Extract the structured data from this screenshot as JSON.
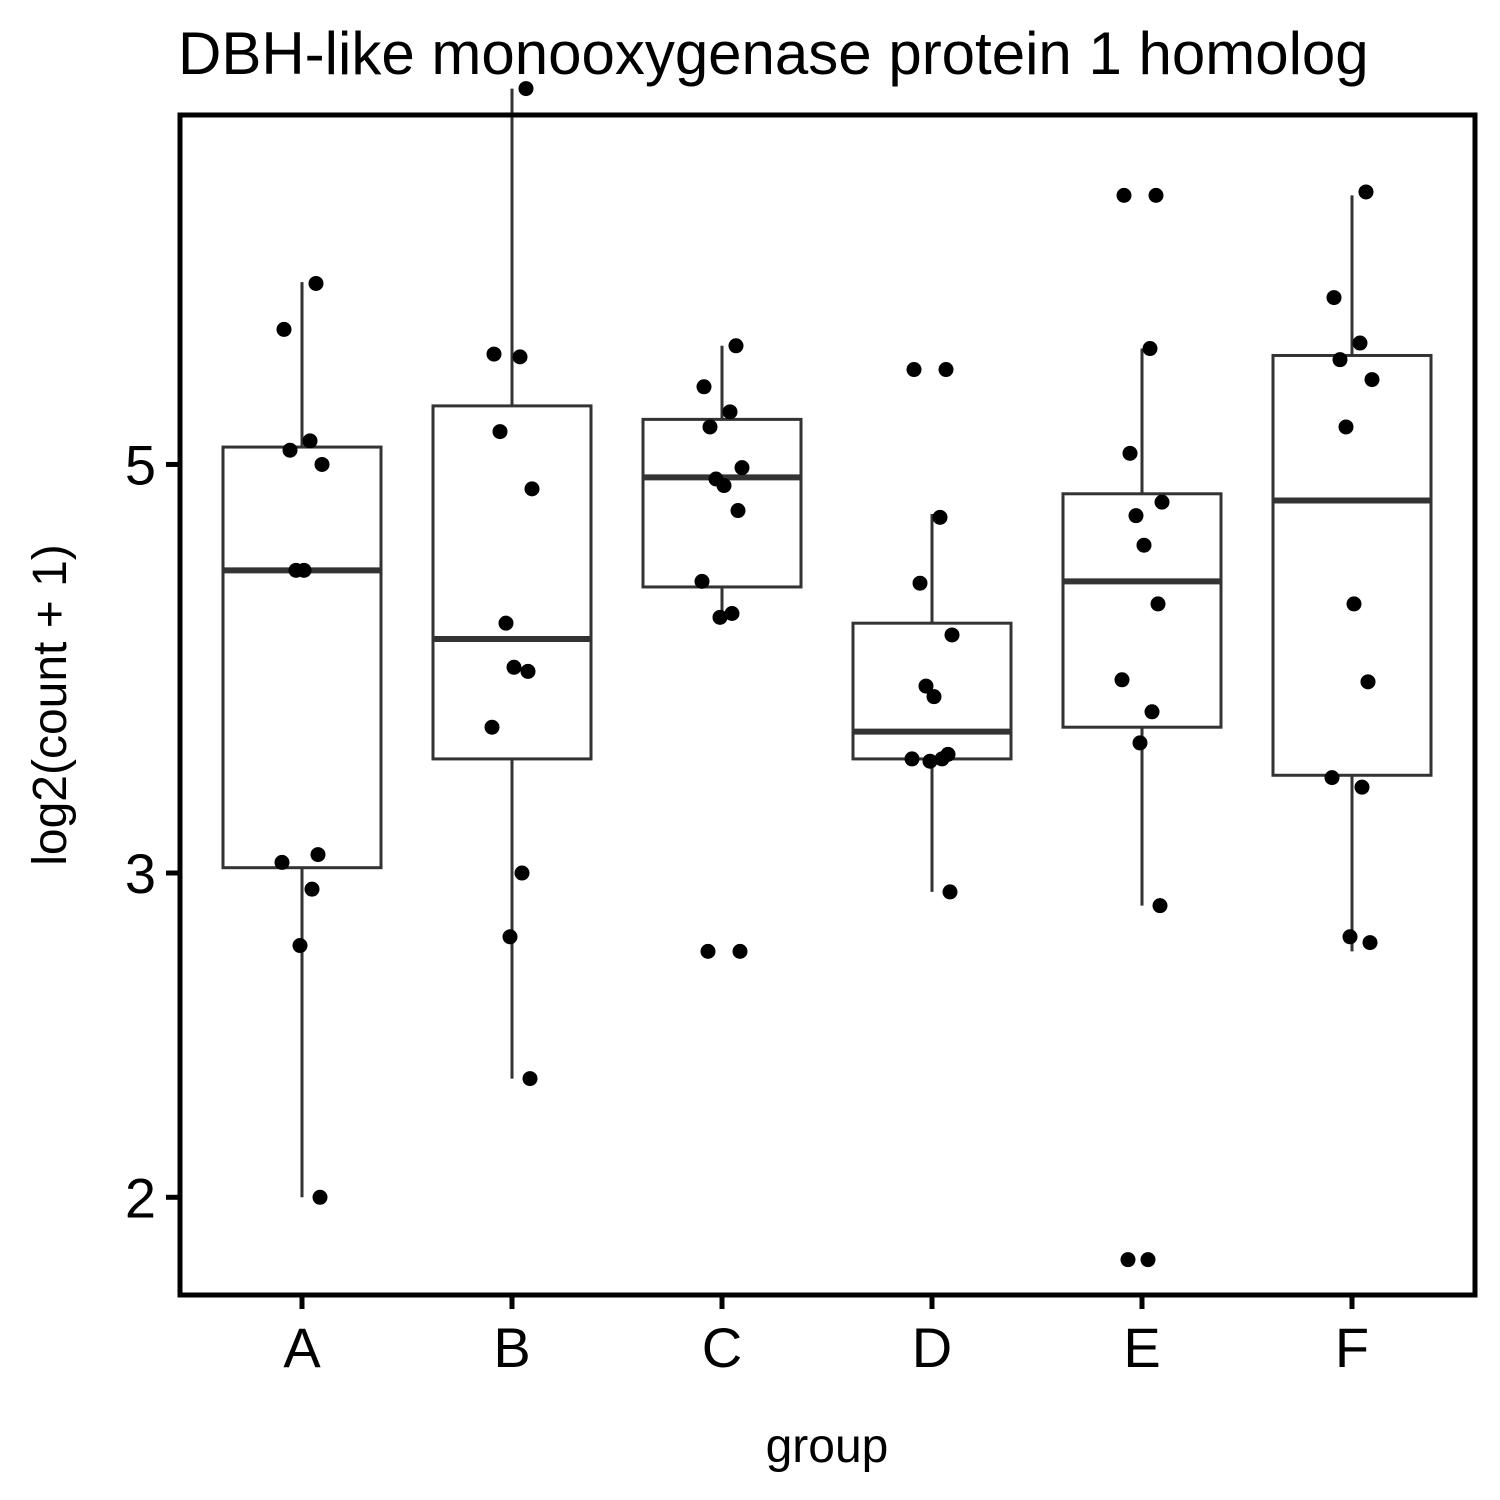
{
  "chart_data": {
    "type": "box",
    "title": "DBH-like monooxygenase protein 1 homolog",
    "xlabel": "group",
    "ylabel": "log2(count + 1)",
    "y_scale": "log2",
    "ylim": [
      1.77,
      7.74
    ],
    "yticks": [
      2,
      3,
      5
    ],
    "categories": [
      "A",
      "B",
      "C",
      "D",
      "E",
      "F"
    ],
    "boxes": [
      {
        "group": "A",
        "whisker_low": 2.0,
        "q1": 3.02,
        "median": 4.38,
        "q3": 5.11,
        "whisker_high": 6.28
      },
      {
        "group": "B",
        "whisker_low": 2.32,
        "q1": 3.46,
        "median": 4.02,
        "q3": 5.38,
        "whisker_high": 8.0
      },
      {
        "group": "C",
        "whisker_low": 4.13,
        "q1": 4.29,
        "median": 4.92,
        "q3": 5.29,
        "whisker_high": 5.8
      },
      {
        "group": "D",
        "whisker_low": 2.93,
        "q1": 3.46,
        "median": 3.58,
        "q3": 4.1,
        "whisker_high": 4.7
      },
      {
        "group": "E",
        "whisker_low": 2.88,
        "q1": 3.6,
        "median": 4.32,
        "q3": 4.82,
        "whisker_high": 5.78
      },
      {
        "group": "F",
        "whisker_low": 2.72,
        "q1": 3.39,
        "median": 4.78,
        "q3": 5.73,
        "whisker_high": 7.0
      }
    ],
    "points": [
      {
        "group": "A",
        "values": [
          6.27,
          5.92,
          5.15,
          5.09,
          5.0,
          4.38,
          4.38,
          3.07,
          3.04,
          2.94,
          2.74,
          2.0
        ]
      },
      {
        "group": "B",
        "values": [
          8.0,
          5.74,
          5.72,
          5.21,
          4.85,
          4.1,
          3.88,
          3.86,
          3.6,
          3.0,
          2.77,
          2.32
        ]
      },
      {
        "group": "C",
        "values": [
          5.8,
          5.51,
          5.34,
          5.24,
          4.98,
          4.91,
          4.87,
          4.72,
          4.32,
          4.15,
          4.13,
          2.72,
          2.72
        ]
      },
      {
        "group": "D",
        "values": [
          5.63,
          5.63,
          4.68,
          4.31,
          4.04,
          3.79,
          3.74,
          3.48,
          3.46,
          3.46,
          3.45,
          2.93
        ]
      },
      {
        "group": "E",
        "values": [
          7.0,
          7.0,
          5.78,
          5.07,
          4.77,
          4.69,
          4.52,
          4.2,
          3.82,
          3.67,
          3.53,
          2.88,
          1.85,
          1.85
        ]
      },
      {
        "group": "F",
        "values": [
          7.03,
          6.16,
          5.82,
          5.7,
          5.56,
          5.24,
          4.2,
          3.81,
          3.38,
          3.34,
          2.77,
          2.75
        ]
      }
    ],
    "grid": false,
    "legend": "none",
    "colors": {
      "box": "#333333",
      "point": "#000000",
      "panel_border": "#000000"
    }
  }
}
